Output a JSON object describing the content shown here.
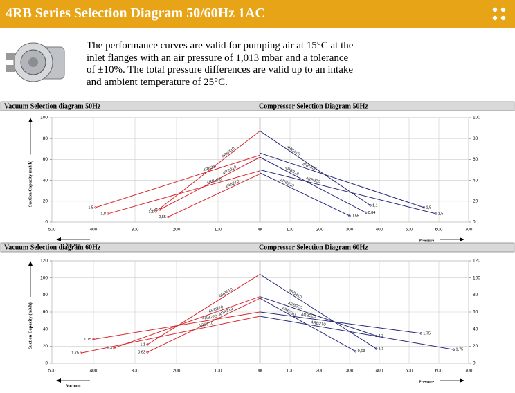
{
  "header": {
    "title": "4RB Series Selection Diagram 50/60Hz 1AC"
  },
  "description": "The performance curves are valid for pumping air at 15°C at the inlet flanges with an air pressure of 1,013 mbar and a tolerance of ±10%. The total pressure differences are valid up to an intake and ambient temperature of 25°C.",
  "chart_data": [
    {
      "type": "line",
      "title": "Vacuum Selection diagram 50Hz",
      "ylabel": "Suction Capacity (m3/h)",
      "xlabel": "Vacuum",
      "xlim": [
        500,
        0
      ],
      "xticks": [
        500,
        400,
        300,
        200,
        100,
        0
      ],
      "ylim": [
        0,
        100
      ],
      "yticks": [
        0,
        20,
        40,
        60,
        80,
        100
      ],
      "grid": true,
      "series": [
        {
          "name": "4RB410",
          "color": "#d9262b",
          "x": [
            0,
            250
          ],
          "values": [
            87,
            10
          ],
          "end_label": "1,1"
        },
        {
          "name": "4RB320",
          "color": "#d9262b",
          "x": [
            0,
            395
          ],
          "values": [
            64,
            14
          ],
          "end_label": "1,5"
        },
        {
          "name": "4RB310",
          "color": "#d9262b",
          "x": [
            0,
            240
          ],
          "values": [
            62,
            12
          ],
          "end_label": "0,84"
        },
        {
          "name": "4RB220",
          "color": "#d9262b",
          "x": [
            0,
            365
          ],
          "values": [
            49,
            8
          ],
          "end_label": "1,8"
        },
        {
          "name": "4RB210",
          "color": "#d9262b",
          "x": [
            0,
            220
          ],
          "values": [
            46,
            5
          ],
          "end_label": "0,55"
        }
      ]
    },
    {
      "type": "line",
      "title": "Compressor Selection Diagram 50Hz",
      "xlabel": "Pressure",
      "xlim": [
        0,
        700
      ],
      "xticks": [
        0,
        100,
        200,
        300,
        400,
        500,
        600,
        700
      ],
      "ylim": [
        0,
        100
      ],
      "yticks": [
        0,
        20,
        40,
        60,
        80,
        100
      ],
      "grid": true,
      "series": [
        {
          "name": "4RB410",
          "color": "#26287a",
          "x": [
            0,
            370
          ],
          "values": [
            87,
            16
          ],
          "end_label": "1,1"
        },
        {
          "name": "4RB320",
          "color": "#26287a",
          "x": [
            0,
            550
          ],
          "values": [
            66,
            14
          ],
          "end_label": "1,5"
        },
        {
          "name": "4RB310",
          "color": "#26287a",
          "x": [
            0,
            355
          ],
          "values": [
            62,
            9
          ],
          "end_label": "0,84"
        },
        {
          "name": "4RB220",
          "color": "#26287a",
          "x": [
            0,
            590
          ],
          "values": [
            50,
            8
          ],
          "end_label": "1,5"
        },
        {
          "name": "4RB210",
          "color": "#26287a",
          "x": [
            0,
            300
          ],
          "values": [
            47,
            6
          ],
          "end_label": "0,55"
        }
      ]
    },
    {
      "type": "line",
      "title": "Vacuum Selection diagram 60Hz",
      "ylabel": "Suction Capacity (m3/h)",
      "xlabel": "Vacuum",
      "xlim": [
        500,
        0
      ],
      "xticks": [
        500,
        400,
        300,
        200,
        100,
        0
      ],
      "ylim": [
        0,
        120
      ],
      "yticks": [
        0,
        20,
        40,
        60,
        80,
        100,
        120
      ],
      "grid": true,
      "series": [
        {
          "name": "4RB410",
          "color": "#d9262b",
          "x": [
            0,
            270
          ],
          "values": [
            104,
            22
          ],
          "end_label": "1,1"
        },
        {
          "name": "4RB320",
          "color": "#d9262b",
          "x": [
            0,
            350
          ],
          "values": [
            78,
            18
          ],
          "end_label": "1,3"
        },
        {
          "name": "4RB310",
          "color": "#d9262b",
          "x": [
            0,
            270
          ],
          "values": [
            76,
            13
          ],
          "end_label": "0,63"
        },
        {
          "name": "4RB220",
          "color": "#d9262b",
          "x": [
            0,
            400
          ],
          "values": [
            60,
            28
          ],
          "end_label": "1,75"
        },
        {
          "name": "4RB210",
          "color": "#d9262b",
          "x": [
            0,
            430
          ],
          "values": [
            55,
            12
          ],
          "end_label": "1,75"
        }
      ]
    },
    {
      "type": "line",
      "title": "Compressor Selection Diagram 60Hz",
      "xlabel": "Pressure",
      "xlim": [
        0,
        700
      ],
      "xticks": [
        0,
        100,
        200,
        300,
        400,
        500,
        600,
        700
      ],
      "ylim": [
        0,
        120
      ],
      "yticks": [
        0,
        20,
        40,
        60,
        80,
        100,
        120
      ],
      "grid": true,
      "series": [
        {
          "name": "4RB410",
          "color": "#26287a",
          "x": [
            0,
            390
          ],
          "values": [
            104,
            17
          ],
          "end_label": "1,1"
        },
        {
          "name": "4RB320",
          "color": "#26287a",
          "x": [
            0,
            390
          ],
          "values": [
            78,
            32
          ],
          "end_label": "1,3"
        },
        {
          "name": "4RB310",
          "color": "#26287a",
          "x": [
            0,
            320
          ],
          "values": [
            76,
            14
          ],
          "end_label": "0,63"
        },
        {
          "name": "4RB220",
          "color": "#26287a",
          "x": [
            0,
            540
          ],
          "values": [
            60,
            35
          ],
          "end_label": "1,75"
        },
        {
          "name": "4RB210",
          "color": "#26287a",
          "x": [
            0,
            650
          ],
          "values": [
            55,
            16
          ],
          "end_label": "1,75"
        }
      ]
    }
  ]
}
